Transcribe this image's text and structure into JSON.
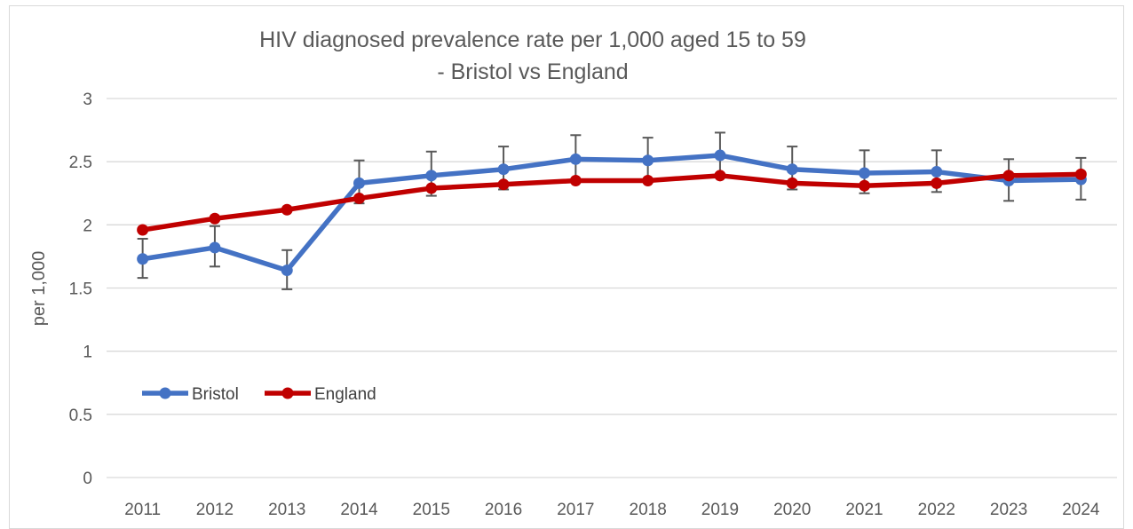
{
  "chart_data": {
    "type": "line",
    "title_lines": [
      "HIV diagnosed prevalence rate per 1,000 aged 15 to 59",
      "- Bristol vs England"
    ],
    "ylabel": "per 1,000",
    "xlabel": "",
    "ylim": [
      0,
      3
    ],
    "yticks": [
      "0",
      "0.5",
      "1",
      "1.5",
      "2",
      "2.5",
      "3"
    ],
    "ytick_values": [
      0,
      0.5,
      1,
      1.5,
      2,
      2.5,
      3
    ],
    "categories": [
      "2011",
      "2012",
      "2013",
      "2014",
      "2015",
      "2016",
      "2017",
      "2018",
      "2019",
      "2020",
      "2021",
      "2022",
      "2023",
      "2024"
    ],
    "grid": true,
    "legend_position": "lower-left",
    "series": [
      {
        "name": "Bristol",
        "color": "#4472c4",
        "values": [
          1.73,
          1.82,
          1.64,
          2.33,
          2.39,
          2.44,
          2.52,
          2.51,
          2.55,
          2.44,
          2.41,
          2.42,
          2.35,
          2.36
        ],
        "error_upper": [
          1.89,
          1.99,
          1.8,
          2.51,
          2.58,
          2.62,
          2.71,
          2.69,
          2.73,
          2.62,
          2.59,
          2.59,
          2.52,
          2.53
        ],
        "error_lower": [
          1.58,
          1.67,
          1.49,
          2.17,
          2.23,
          2.28,
          2.36,
          2.35,
          2.38,
          2.28,
          2.25,
          2.26,
          2.19,
          2.2
        ]
      },
      {
        "name": "England",
        "color": "#c00000",
        "values": [
          1.96,
          2.05,
          2.12,
          2.21,
          2.29,
          2.32,
          2.35,
          2.35,
          2.39,
          2.33,
          2.31,
          2.33,
          2.39,
          2.4
        ]
      }
    ],
    "axis_color": "#d9d9d9",
    "error_bar_color": "#595959"
  }
}
